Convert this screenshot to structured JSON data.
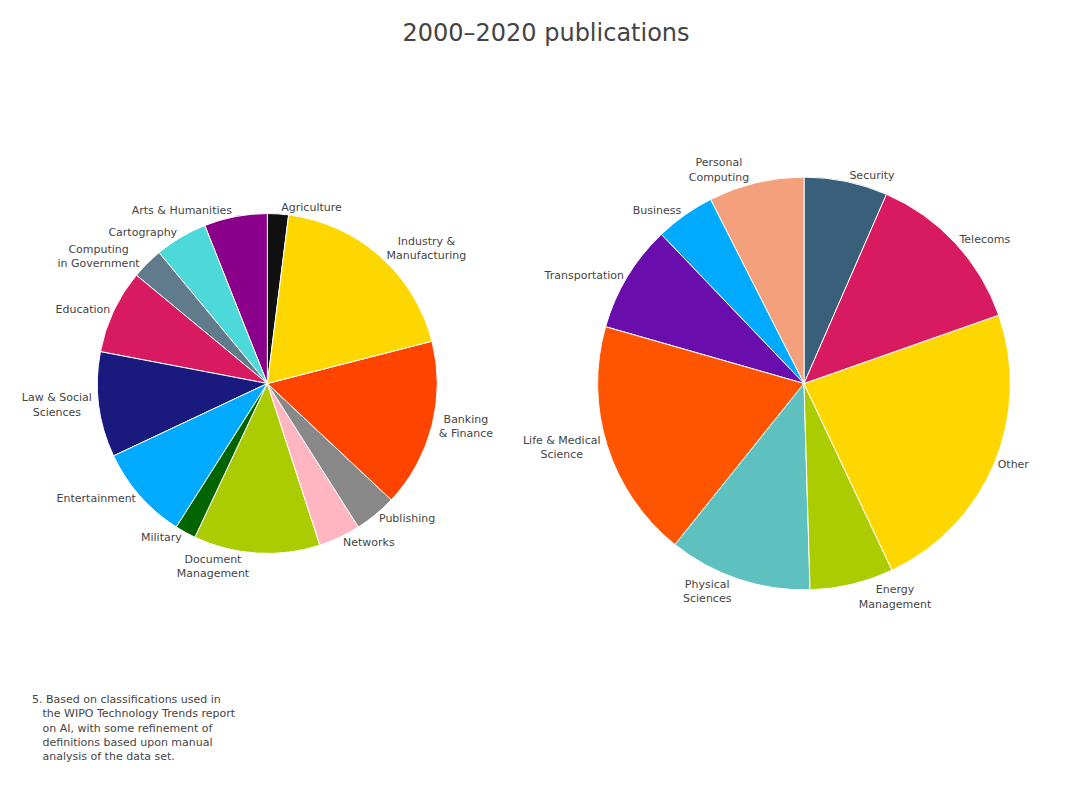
{
  "chart_data": [
    {
      "type": "pie",
      "title": "2000–2020 publications",
      "categories": [
        "Agriculture",
        "Arts & Humanities",
        "Cartography",
        "Computing\nin Government",
        "Education",
        "Law & Social\nSciences",
        "Entertainment",
        "Military",
        "Document\nManagement",
        "Networks",
        "Publishing",
        "Banking\n& Finance",
        "Industry &\nManufacturing"
      ],
      "values": [
        2,
        6,
        5,
        3,
        8,
        10,
        9,
        2,
        12,
        4,
        4,
        16,
        19
      ],
      "colors": [
        "#111111",
        "#8B008B",
        "#4DD9D9",
        "#607B8B",
        "#D81B60",
        "#1A1A7E",
        "#00AAFF",
        "#006400",
        "#AACC00",
        "#FFB6C1",
        "#888888",
        "#FF4400",
        "#FFD700"
      ],
      "annotations": [
        "5. Based on classifications used in\n   the WIPO Technology Trends report\n   on AI, with some refinement of\n   definitions based upon manual\n   analysis of the data set."
      ]
    },
    {
      "type": "pie",
      "categories": [
        "Security",
        "Personal\nComputing",
        "Business",
        "Transportation",
        "Life & Medical\nScience",
        "Physical\nSciences",
        "Energy\nManagement",
        "Other",
        "Telecoms"
      ],
      "values": [
        7,
        8,
        5,
        9,
        20,
        12,
        7,
        25,
        14
      ],
      "colors": [
        "#3A5F7A",
        "#F4A07C",
        "#00AAFF",
        "#6A0DAD",
        "#FF5500",
        "#5FC0C0",
        "#AACC00",
        "#FFD700",
        "#D81B60"
      ]
    }
  ]
}
